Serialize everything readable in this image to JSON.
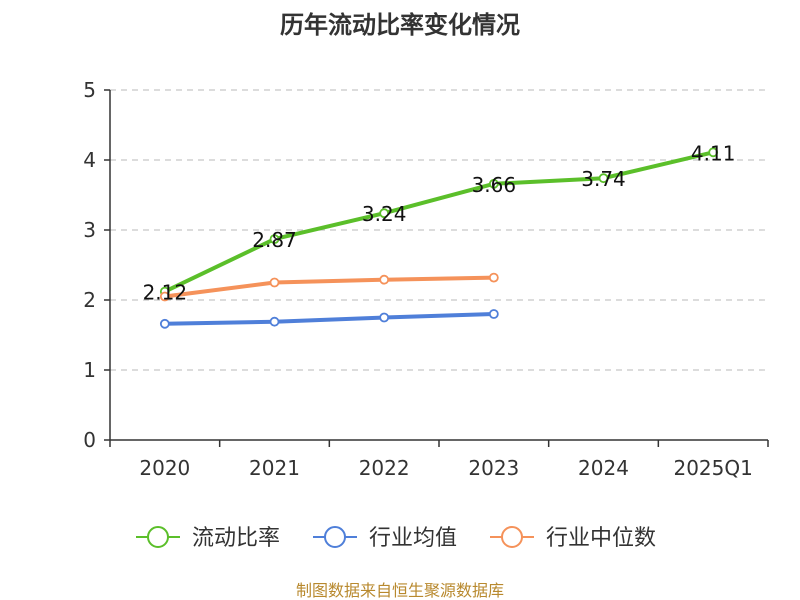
{
  "chart_data": {
    "type": "line",
    "title": "历年流动比率变化情况",
    "categories": [
      "2020",
      "2021",
      "2022",
      "2023",
      "2024",
      "2025Q1"
    ],
    "ylim": [
      0,
      5
    ],
    "yticks": [
      "0",
      "1",
      "2",
      "3",
      "4",
      "5"
    ],
    "grid": true,
    "legend_position": "bottom",
    "series": [
      {
        "name": "流动比率",
        "color": "#5bbf2a",
        "values": [
          2.12,
          2.87,
          3.24,
          3.66,
          3.74,
          4.11
        ],
        "labels": [
          "2.12",
          "2.87",
          "3.24",
          "3.66",
          "3.74",
          "4.11"
        ]
      },
      {
        "name": "行业均值",
        "color": "#4f7fd9",
        "values": [
          1.66,
          1.69,
          1.75,
          1.8,
          null,
          null
        ]
      },
      {
        "name": "行业中位数",
        "color": "#f5925a",
        "values": [
          2.05,
          2.25,
          2.29,
          2.32,
          null,
          null
        ]
      }
    ],
    "source": "制图数据来自恒生聚源数据库"
  }
}
